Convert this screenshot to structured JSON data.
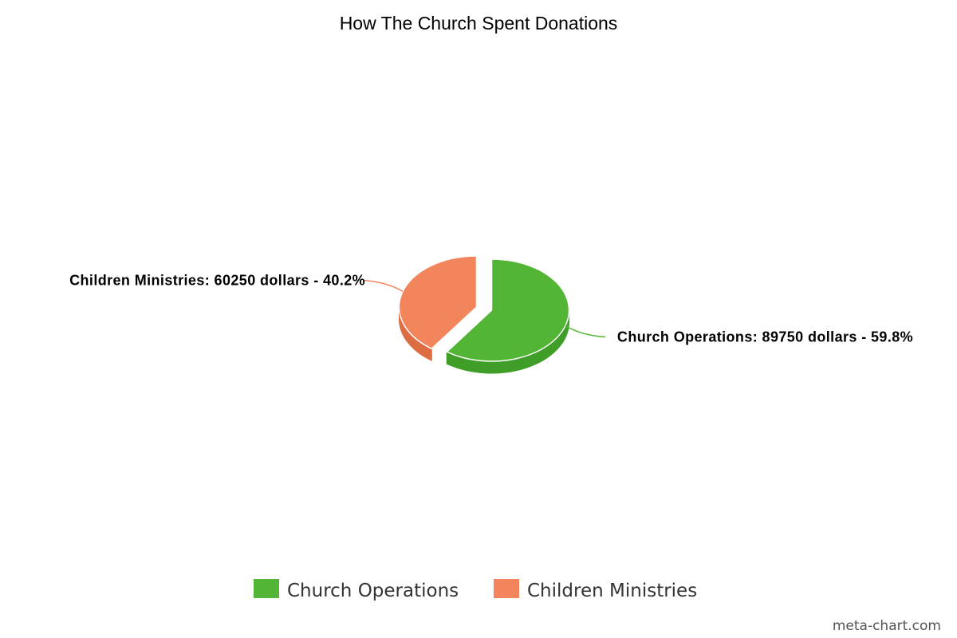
{
  "watermark": "meta-chart.com",
  "chart_data": {
    "type": "pie",
    "title": "How The Church Spent Donations",
    "unit": "dollars",
    "three_d": true,
    "exploded": true,
    "legend_position": "bottom-center",
    "slices": [
      {
        "name": "Church Operations",
        "value": 89750,
        "percent": 59.8,
        "label": "Church Operations: 89750 dollars - 59.8%",
        "color": "#52b535",
        "side_color": "#3f9e27"
      },
      {
        "name": "Children Ministries",
        "value": 60250,
        "percent": 40.2,
        "label": "Children Ministries: 60250 dollars - 40.2%",
        "color": "#f2855b",
        "side_color": "#dd6c42"
      }
    ]
  }
}
